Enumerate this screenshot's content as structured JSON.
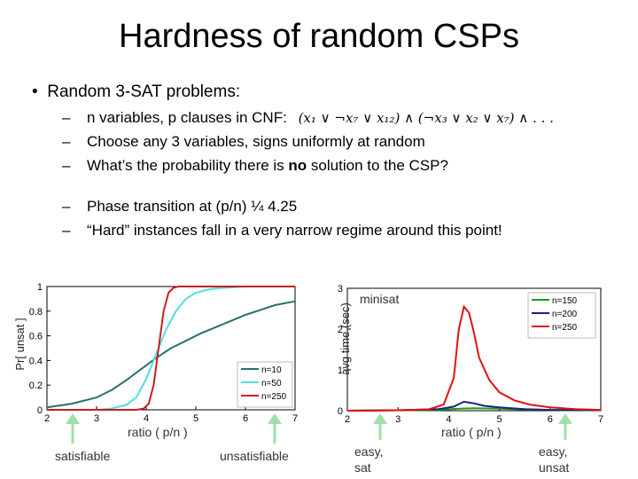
{
  "slide": {
    "title": "Hardness of random CSPs",
    "bullet": "Random 3-SAT problems:",
    "sub1": "n variables, p clauses in CNF:",
    "cnf_formula": "(x₁ ∨ ¬x₇ ∨ x₁₂) ∧ (¬x₃ ∨ x₂ ∨ x₇) ∧ . . .",
    "sub2": "Choose any 3 variables, signs uniformly at random",
    "sub3_pre": "What’s the probability there is ",
    "sub3_bold": "no",
    "sub3_post": " solution to the CSP?",
    "sub4": "Phase transition at  (p/n) ¼ 4.25",
    "sub5": "“Hard” instances fall in a very narrow regime around this point!",
    "dash": "–"
  },
  "labels": {
    "left_ylabel": "Pr[ unsat ]",
    "left_xlabel": "ratio  ( p/n )",
    "satisfiable": "satisfiable",
    "unsatisfiable": "unsatisfiable",
    "right_ylabel": "avg time (sec)",
    "minisat": "minisat",
    "right_xlabel": "ratio  ( p/n )",
    "easy_sat": "easy, sat",
    "easy_unsat": "easy, unsat"
  },
  "chart_data": [
    {
      "type": "line",
      "title": "",
      "ylabel": "Pr[ unsat ]",
      "xlabel": "ratio ( p/n )",
      "xlim": [
        2,
        7
      ],
      "ylim": [
        0,
        1
      ],
      "xticks": [
        2,
        3,
        4,
        5,
        6,
        7
      ],
      "yticks": [
        0,
        0.2,
        0.4,
        0.6,
        0.8,
        1
      ],
      "legend": "bottom-right",
      "series": [
        {
          "name": "n=10",
          "color": "#2a6f70",
          "x": [
            2.0,
            2.5,
            3.0,
            3.3,
            3.6,
            3.9,
            4.2,
            4.5,
            4.8,
            5.1,
            5.4,
            5.7,
            6.0,
            6.3,
            6.6,
            7.0
          ],
          "y": [
            0.02,
            0.05,
            0.1,
            0.16,
            0.24,
            0.33,
            0.42,
            0.5,
            0.56,
            0.62,
            0.67,
            0.72,
            0.77,
            0.81,
            0.85,
            0.88
          ]
        },
        {
          "name": "n=50",
          "color": "#4fe0dc",
          "x": [
            2.0,
            3.0,
            3.3,
            3.6,
            3.8,
            4.0,
            4.2,
            4.4,
            4.6,
            4.8,
            5.0,
            5.3,
            5.6,
            6.0,
            7.0
          ],
          "y": [
            0.0,
            0.0,
            0.01,
            0.04,
            0.1,
            0.25,
            0.45,
            0.65,
            0.8,
            0.9,
            0.95,
            0.98,
            0.99,
            1.0,
            1.0
          ]
        },
        {
          "name": "n=250",
          "color": "#c81e1e",
          "x": [
            2.0,
            3.0,
            3.8,
            3.95,
            4.05,
            4.15,
            4.25,
            4.35,
            4.45,
            4.55,
            4.65,
            5.0,
            7.0
          ],
          "y": [
            0.0,
            0.0,
            0.0,
            0.01,
            0.05,
            0.2,
            0.5,
            0.8,
            0.95,
            0.99,
            1.0,
            1.0,
            1.0
          ]
        }
      ]
    },
    {
      "type": "line",
      "title": "",
      "ylabel": "avg time (sec)",
      "xlabel": "ratio ( p/n )",
      "xlim": [
        2,
        7
      ],
      "ylim": [
        0,
        3
      ],
      "xticks": [
        2,
        3,
        4,
        5,
        6,
        7
      ],
      "yticks": [
        0,
        1,
        2,
        3
      ],
      "legend": "top-right",
      "series": [
        {
          "name": "n=150",
          "color": "#1f9a1f",
          "x": [
            2.0,
            3.0,
            3.8,
            4.2,
            4.5,
            5.0,
            5.5,
            6.0,
            7.0
          ],
          "y": [
            0.0,
            0.01,
            0.02,
            0.05,
            0.06,
            0.05,
            0.03,
            0.02,
            0.01
          ]
        },
        {
          "name": "n=200",
          "color": "#1a237e",
          "x": [
            2.0,
            3.0,
            3.8,
            4.1,
            4.3,
            4.5,
            4.7,
            5.0,
            5.5,
            6.0,
            7.0
          ],
          "y": [
            0.0,
            0.01,
            0.04,
            0.1,
            0.22,
            0.18,
            0.12,
            0.08,
            0.04,
            0.02,
            0.01
          ]
        },
        {
          "name": "n=250",
          "color": "#e01010",
          "x": [
            2.0,
            3.0,
            3.6,
            3.9,
            4.1,
            4.2,
            4.3,
            4.4,
            4.5,
            4.6,
            4.8,
            5.0,
            5.3,
            5.6,
            6.0,
            6.5,
            7.0
          ],
          "y": [
            0.0,
            0.01,
            0.03,
            0.15,
            0.8,
            2.0,
            2.55,
            2.4,
            1.9,
            1.3,
            0.75,
            0.45,
            0.25,
            0.15,
            0.08,
            0.04,
            0.02
          ]
        }
      ]
    }
  ]
}
